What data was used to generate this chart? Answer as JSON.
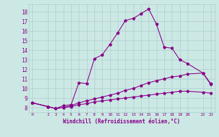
{
  "bg_color": "#cce8e4",
  "line_color": "#880088",
  "grid_color": "#aacccc",
  "xlabel": "Windchill (Refroidissement éolien,°C)",
  "ylim": [
    7.5,
    18.8
  ],
  "xlim": [
    -0.5,
    23.5
  ],
  "yticks": [
    8,
    9,
    10,
    11,
    12,
    13,
    14,
    15,
    16,
    17,
    18
  ],
  "xticks": [
    0,
    2,
    3,
    4,
    5,
    6,
    7,
    8,
    9,
    10,
    11,
    12,
    13,
    14,
    15,
    16,
    17,
    18,
    19,
    20,
    22,
    23
  ],
  "series1_x": [
    0,
    2,
    3,
    4,
    5,
    6,
    7,
    8,
    9,
    10,
    11,
    12,
    13,
    14,
    15,
    16,
    17,
    18,
    19,
    20,
    22,
    23
  ],
  "series1_y": [
    8.5,
    8.1,
    7.9,
    8.2,
    8.3,
    10.6,
    10.5,
    13.1,
    13.5,
    14.6,
    15.8,
    17.1,
    17.3,
    17.8,
    18.3,
    16.7,
    14.3,
    14.2,
    13.0,
    12.6,
    11.6,
    10.5
  ],
  "series2_x": [
    0,
    2,
    3,
    4,
    5,
    6,
    7,
    8,
    9,
    10,
    11,
    12,
    13,
    14,
    15,
    16,
    17,
    18,
    19,
    20,
    22,
    23
  ],
  "series2_y": [
    8.5,
    8.1,
    7.9,
    8.0,
    8.2,
    8.5,
    8.7,
    8.9,
    9.1,
    9.3,
    9.5,
    9.8,
    10.0,
    10.3,
    10.6,
    10.8,
    11.0,
    11.2,
    11.3,
    11.5,
    11.6,
    10.4
  ],
  "series3_x": [
    0,
    2,
    3,
    4,
    5,
    6,
    7,
    8,
    9,
    10,
    11,
    12,
    13,
    14,
    15,
    16,
    17,
    18,
    19,
    20,
    22,
    23
  ],
  "series3_y": [
    8.5,
    8.1,
    7.9,
    8.0,
    8.1,
    8.3,
    8.4,
    8.6,
    8.7,
    8.8,
    8.9,
    9.0,
    9.1,
    9.2,
    9.3,
    9.4,
    9.5,
    9.6,
    9.7,
    9.7,
    9.6,
    9.5
  ]
}
